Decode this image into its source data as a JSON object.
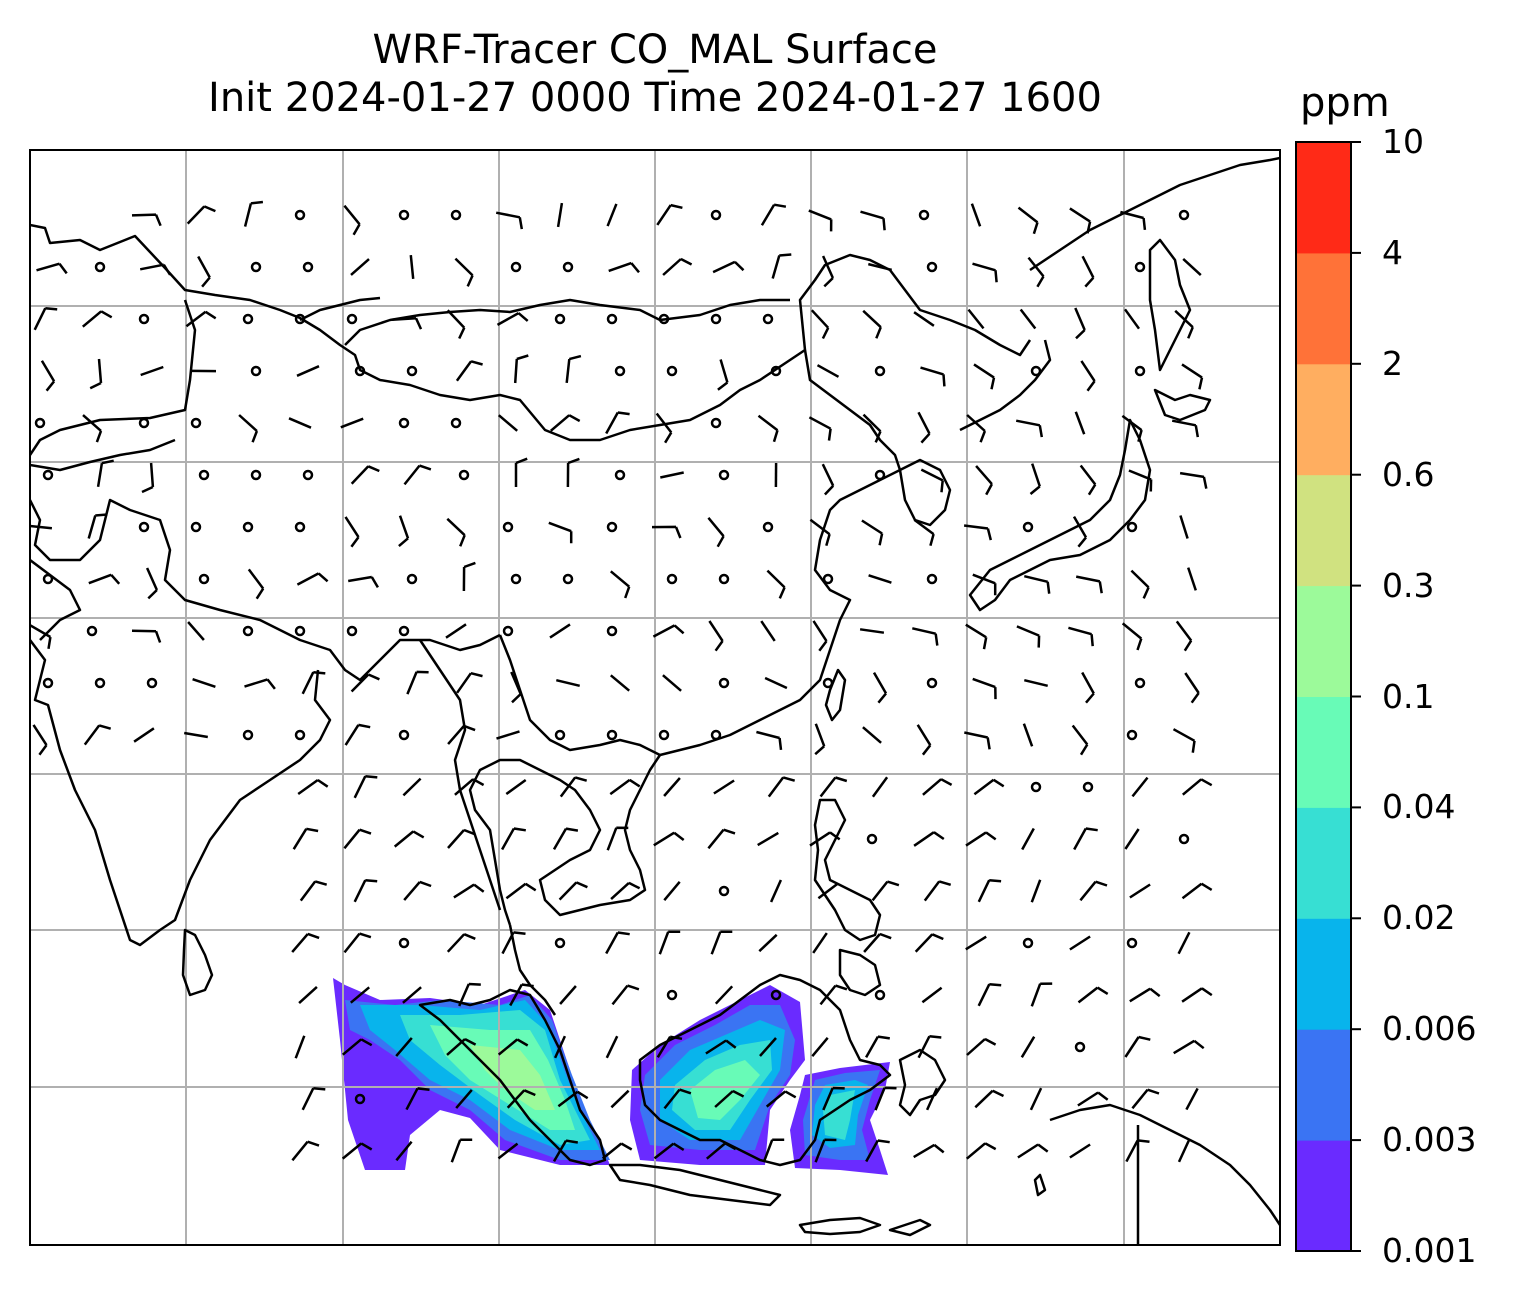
{
  "title": {
    "line1": "WRF-Tracer CO_MAL Surface",
    "line2": "Init 2024-01-27 0000 Time 2024-01-27 1600"
  },
  "colorbar": {
    "unit": "ppm",
    "levels": [
      "0.001",
      "0.003",
      "0.006",
      "0.02",
      "0.04",
      "0.1",
      "0.3",
      "0.6",
      "2",
      "4",
      "10"
    ],
    "colors": [
      "#6a2bff",
      "#3a74f3",
      "#08b4ec",
      "#37dfd3",
      "#68fbb7",
      "#9cfa9a",
      "#d0e280",
      "#ffae60",
      "#ff7238",
      "#ff2a17"
    ]
  },
  "map": {
    "background": "#ffffff",
    "gridline_color": "#b0b0b0",
    "coastline_color": "#000000",
    "barb_color": "#000000",
    "tracer_region": "Malaysia / Sumatra / Borneo plume"
  }
}
